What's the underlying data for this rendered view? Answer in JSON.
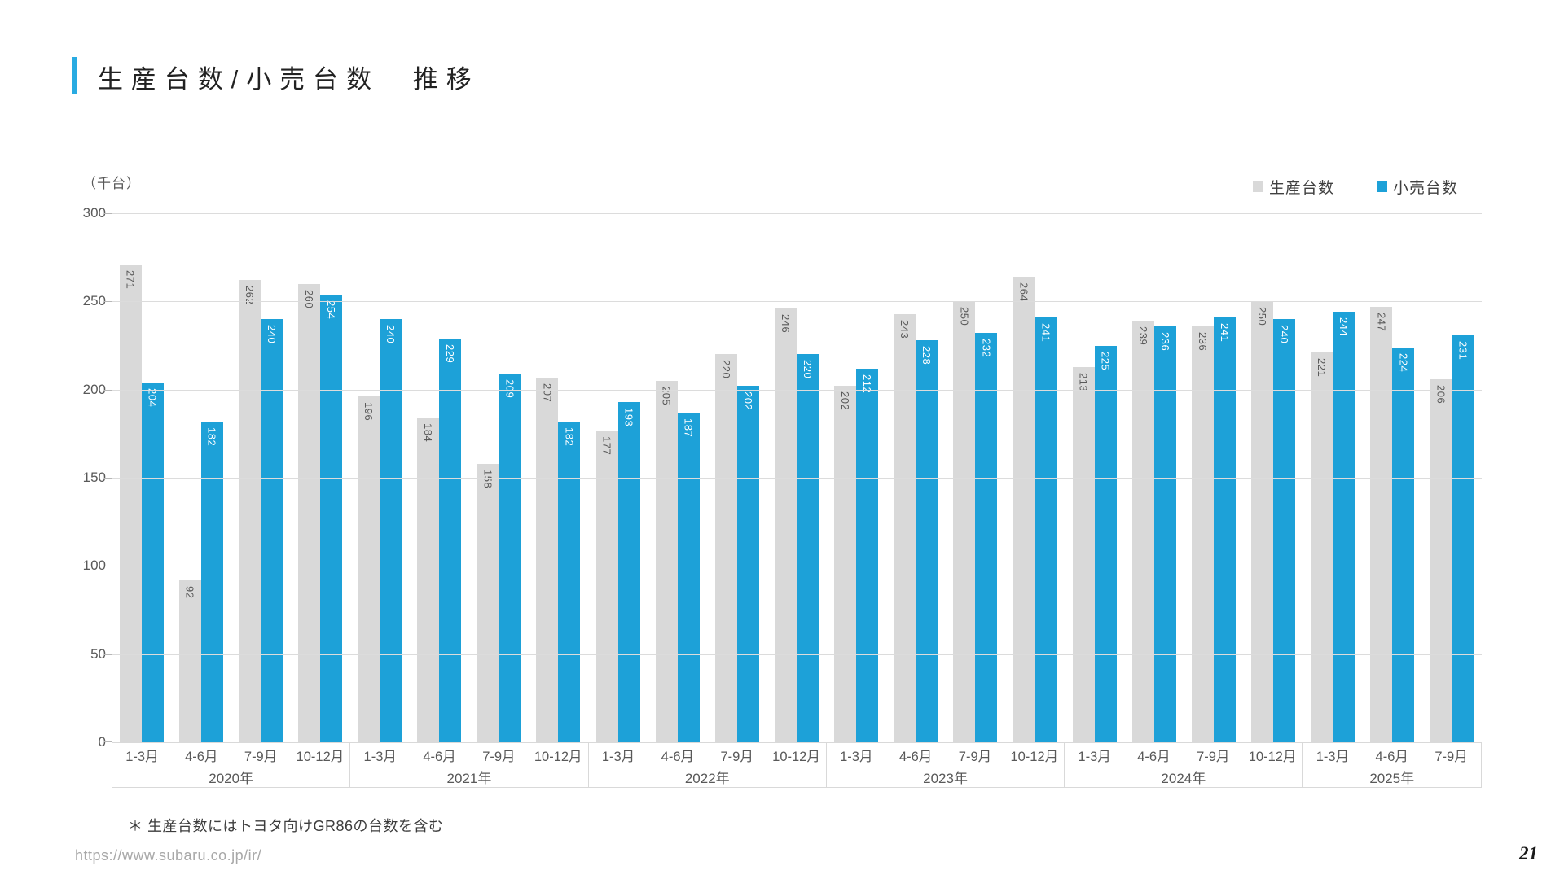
{
  "page": {
    "title": "生産台数/小売台数　推移",
    "unit_label": "（千台）",
    "footnote": "＊ 生産台数にはトヨタ向けGR86の台数を含む",
    "url": "https://www.subaru.co.jp/ir/",
    "page_number": "21"
  },
  "chart_data": {
    "type": "bar",
    "title": "生産台数/小売台数 推移",
    "ylabel": "（千台）",
    "xlabel": "",
    "ylim": [
      0,
      300
    ],
    "yticks": [
      0,
      50,
      100,
      150,
      200,
      250,
      300
    ],
    "grid": true,
    "legend_position": "top-right",
    "series": [
      {
        "name": "生産台数",
        "color": "#d9d9d9",
        "label_color": "#595959"
      },
      {
        "name": "小売台数",
        "color": "#1da1d8",
        "label_color": "#ffffff"
      }
    ],
    "groups": [
      {
        "year": "2020年",
        "quarters": [
          "1-3月",
          "4-6月",
          "7-9月",
          "10-12月"
        ],
        "production": [
          271,
          92,
          262,
          260
        ],
        "retail": [
          204,
          182,
          240,
          254
        ]
      },
      {
        "year": "2021年",
        "quarters": [
          "1-3月",
          "4-6月",
          "7-9月",
          "10-12月"
        ],
        "production": [
          196,
          184,
          158,
          207
        ],
        "retail": [
          240,
          229,
          209,
          182
        ]
      },
      {
        "year": "2022年",
        "quarters": [
          "1-3月",
          "4-6月",
          "7-9月",
          "10-12月"
        ],
        "production": [
          177,
          205,
          220,
          246
        ],
        "retail": [
          193,
          187,
          202,
          220
        ]
      },
      {
        "year": "2023年",
        "quarters": [
          "1-3月",
          "4-6月",
          "7-9月",
          "10-12月"
        ],
        "production": [
          202,
          243,
          250,
          264
        ],
        "retail": [
          212,
          228,
          232,
          241
        ]
      },
      {
        "year": "2024年",
        "quarters": [
          "1-3月",
          "4-6月",
          "7-9月",
          "10-12月"
        ],
        "production": [
          213,
          239,
          236,
          250
        ],
        "retail": [
          225,
          236,
          241,
          240
        ]
      },
      {
        "year": "2025年",
        "quarters": [
          "1-3月",
          "4-6月",
          "7-9月"
        ],
        "production": [
          221,
          247,
          206
        ],
        "retail": [
          244,
          224,
          231
        ]
      }
    ]
  }
}
